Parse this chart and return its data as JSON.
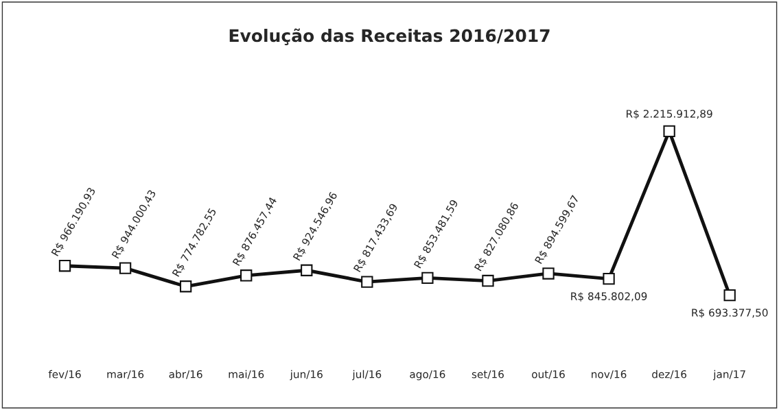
{
  "chart_data": {
    "type": "line",
    "title": "Evolução das Receitas 2016/2017",
    "categories": [
      "fev/16",
      "mar/16",
      "abr/16",
      "mai/16",
      "jun/16",
      "jul/16",
      "ago/16",
      "set/16",
      "out/16",
      "nov/16",
      "dez/16",
      "jan/17"
    ],
    "values": [
      966190.93,
      944000.43,
      774782.55,
      876457.44,
      924546.96,
      817433.69,
      853481.59,
      827080.86,
      894599.67,
      845802.09,
      2215912.89,
      693377.5
    ],
    "value_labels": [
      "R$ 966.190,93",
      "R$ 944.000,43",
      "R$ 774.782,55",
      "R$ 876.457,44",
      "R$ 924.546,96",
      "R$ 817.433,69",
      "R$ 853.481,59",
      "R$ 827.080,86",
      "R$ 894.599,67",
      "R$ 845.802,09",
      "R$ 2.215.912,89",
      "R$ 693.377,50"
    ],
    "color": "#111111",
    "marker": "square",
    "line_style": "solid",
    "grid": false,
    "legend": false
  }
}
